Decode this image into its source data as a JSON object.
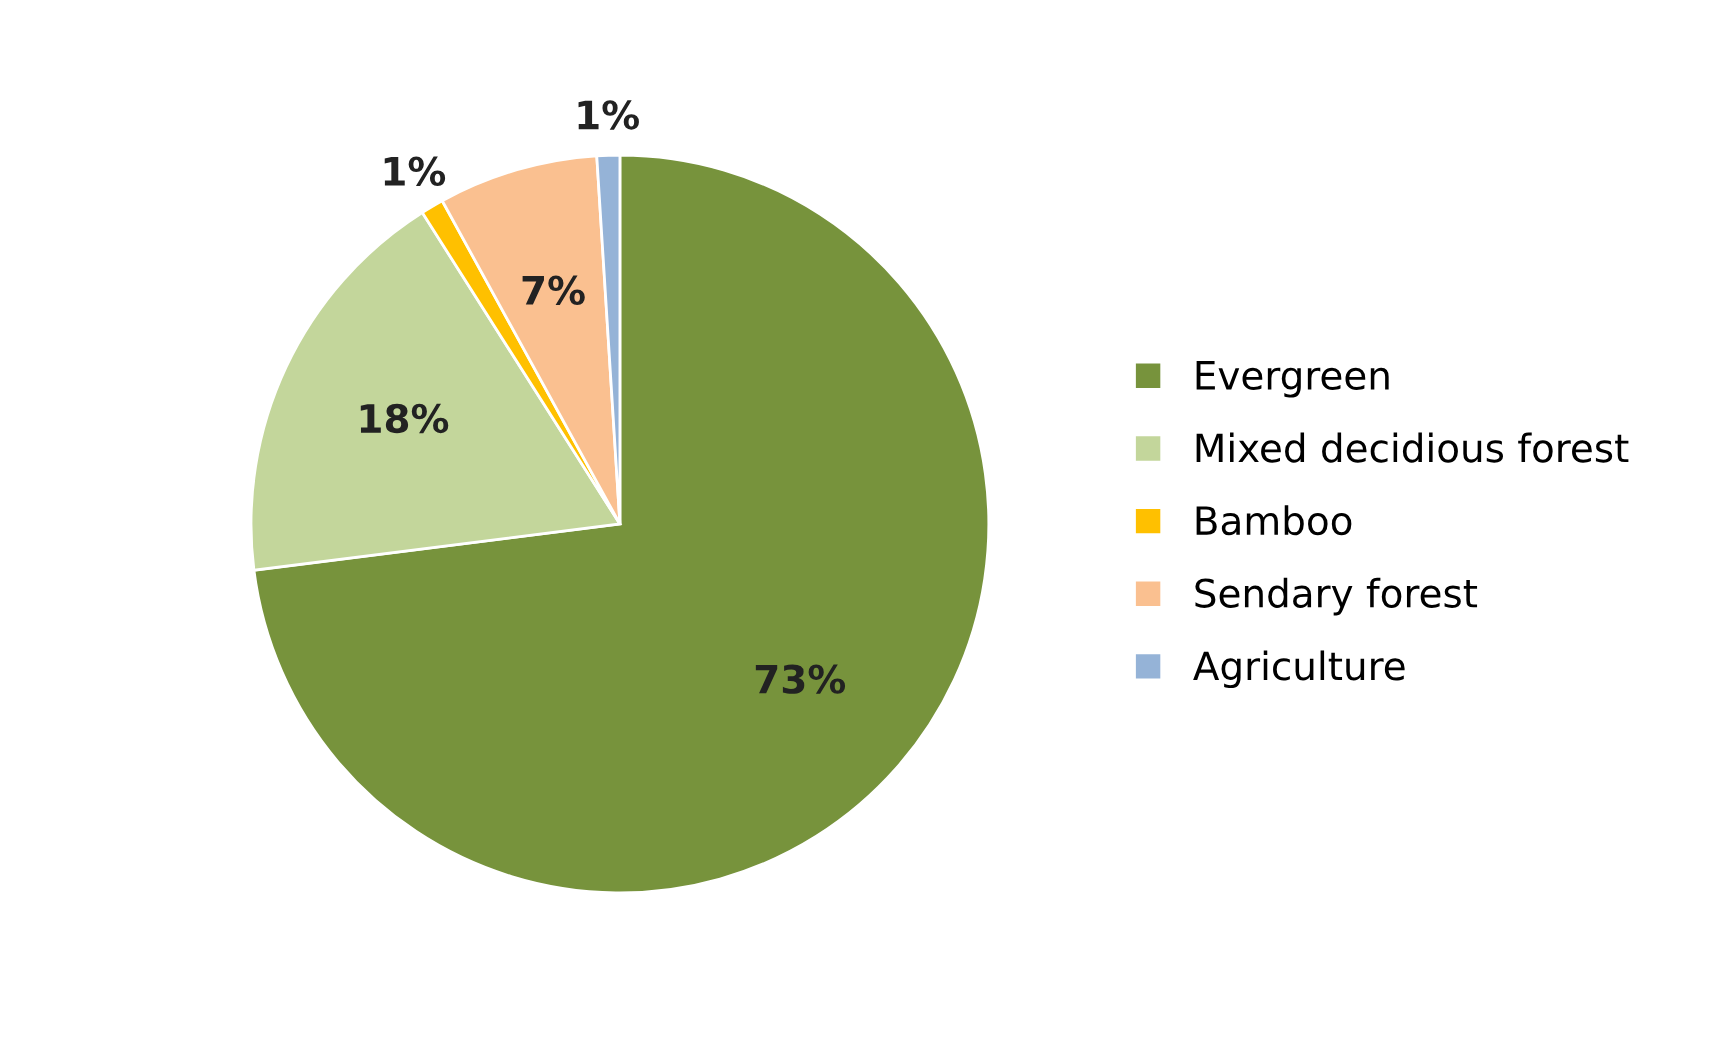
{
  "chart_data": {
    "type": "pie",
    "categories": [
      "Evergreen",
      "Mixed decidious forest",
      "Bamboo",
      "Sendary forest",
      "Agriculture"
    ],
    "values": [
      73,
      18,
      1,
      7,
      1
    ],
    "colors": [
      "#77933c",
      "#c3d69b",
      "#ffc000",
      "#fac090",
      "#95b3d7"
    ],
    "value_labels": [
      "73%",
      "18%",
      "1%",
      "7%",
      "1%"
    ],
    "legend": "right"
  }
}
